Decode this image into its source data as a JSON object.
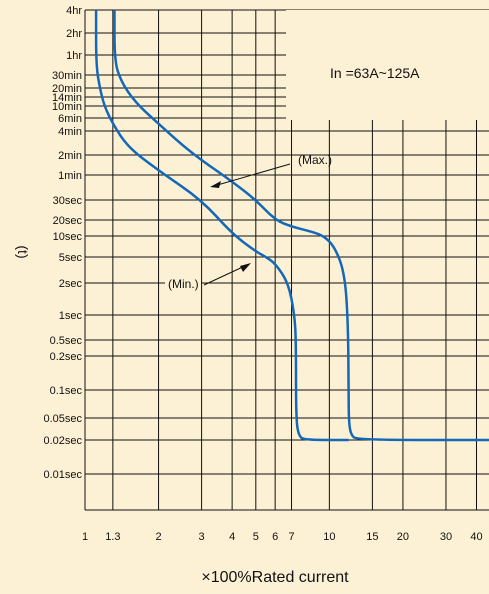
{
  "chart_data": {
    "type": "line",
    "annotation": "In =63A~125A",
    "xlabel": "×100%Rated current",
    "ylabel": "(t)",
    "x_scale": "log",
    "y_scale": "log",
    "xlim": [
      1,
      45
    ],
    "x_ticks": [
      {
        "value": 1,
        "label": "1"
      },
      {
        "value": 1.3,
        "label": "1.3"
      },
      {
        "value": 2,
        "label": "2"
      },
      {
        "value": 3,
        "label": "3"
      },
      {
        "value": 4,
        "label": "4"
      },
      {
        "value": 5,
        "label": "5"
      },
      {
        "value": 6,
        "label": "6"
      },
      {
        "value": 7,
        "label": "7"
      },
      {
        "value": 10,
        "label": "10"
      },
      {
        "value": 15,
        "label": "15"
      },
      {
        "value": 20,
        "label": "20"
      },
      {
        "value": 30,
        "label": "30"
      },
      {
        "value": 40,
        "label": "40"
      }
    ],
    "y_ticks": [
      {
        "value": 14400,
        "label": "4hr"
      },
      {
        "value": 7200,
        "label": "2hr"
      },
      {
        "value": 3600,
        "label": "1hr"
      },
      {
        "value": 1800,
        "label": "30min"
      },
      {
        "value": 1200,
        "label": "20min"
      },
      {
        "value": 840,
        "label": "14min"
      },
      {
        "value": 600,
        "label": "10min"
      },
      {
        "value": 360,
        "label": "6min"
      },
      {
        "value": 240,
        "label": "4min"
      },
      {
        "value": 120,
        "label": "2min"
      },
      {
        "value": 60,
        "label": "1min"
      },
      {
        "value": 30,
        "label": "30sec"
      },
      {
        "value": 20,
        "label": "20sec"
      },
      {
        "value": 10,
        "label": "10sec"
      },
      {
        "value": 5,
        "label": "5sec"
      },
      {
        "value": 2,
        "label": "2sec"
      },
      {
        "value": 1,
        "label": "1sec"
      },
      {
        "value": 0.5,
        "label": "0.5sec"
      },
      {
        "value": 0.2,
        "label": "0.2sec"
      },
      {
        "value": 0.1,
        "label": "0.1sec"
      },
      {
        "value": 0.05,
        "label": "0.05sec"
      },
      {
        "value": 0.02,
        "label": "0.02sec"
      },
      {
        "value": 0.01,
        "label": "0.01sec"
      }
    ],
    "series": [
      {
        "name": "(Max.)",
        "color": "#1468b8",
        "points": [
          [
            1.32,
            14400
          ],
          [
            1.32,
            3000
          ],
          [
            1.4,
            1500
          ],
          [
            1.6,
            700
          ],
          [
            2,
            300
          ],
          [
            2.5,
            160
          ],
          [
            3,
            100
          ],
          [
            4,
            50
          ],
          [
            5,
            30
          ],
          [
            6,
            20
          ],
          [
            7,
            15
          ],
          [
            8.5,
            12
          ],
          [
            9.5,
            10
          ],
          [
            10.5,
            7
          ],
          [
            11.5,
            3
          ],
          [
            11.9,
            1
          ],
          [
            12,
            0.1
          ],
          [
            12,
            0.05
          ],
          [
            12.2,
            0.025
          ],
          [
            13,
            0.02
          ],
          [
            45,
            0.02
          ]
        ]
      },
      {
        "name": "(Min.)",
        "color": "#1468b8",
        "points": [
          [
            1.11,
            14400
          ],
          [
            1.11,
            2500
          ],
          [
            1.15,
            1200
          ],
          [
            1.2,
            600
          ],
          [
            1.3,
            300
          ],
          [
            1.5,
            150
          ],
          [
            2,
            70
          ],
          [
            3,
            30
          ],
          [
            4,
            11
          ],
          [
            5,
            6
          ],
          [
            5.5,
            5
          ],
          [
            6,
            4
          ],
          [
            6.8,
            2
          ],
          [
            7.2,
            1
          ],
          [
            7.3,
            0.5
          ],
          [
            7.3,
            0.05
          ],
          [
            7.5,
            0.023
          ],
          [
            8,
            0.02
          ],
          [
            12,
            0.02
          ]
        ]
      }
    ]
  }
}
